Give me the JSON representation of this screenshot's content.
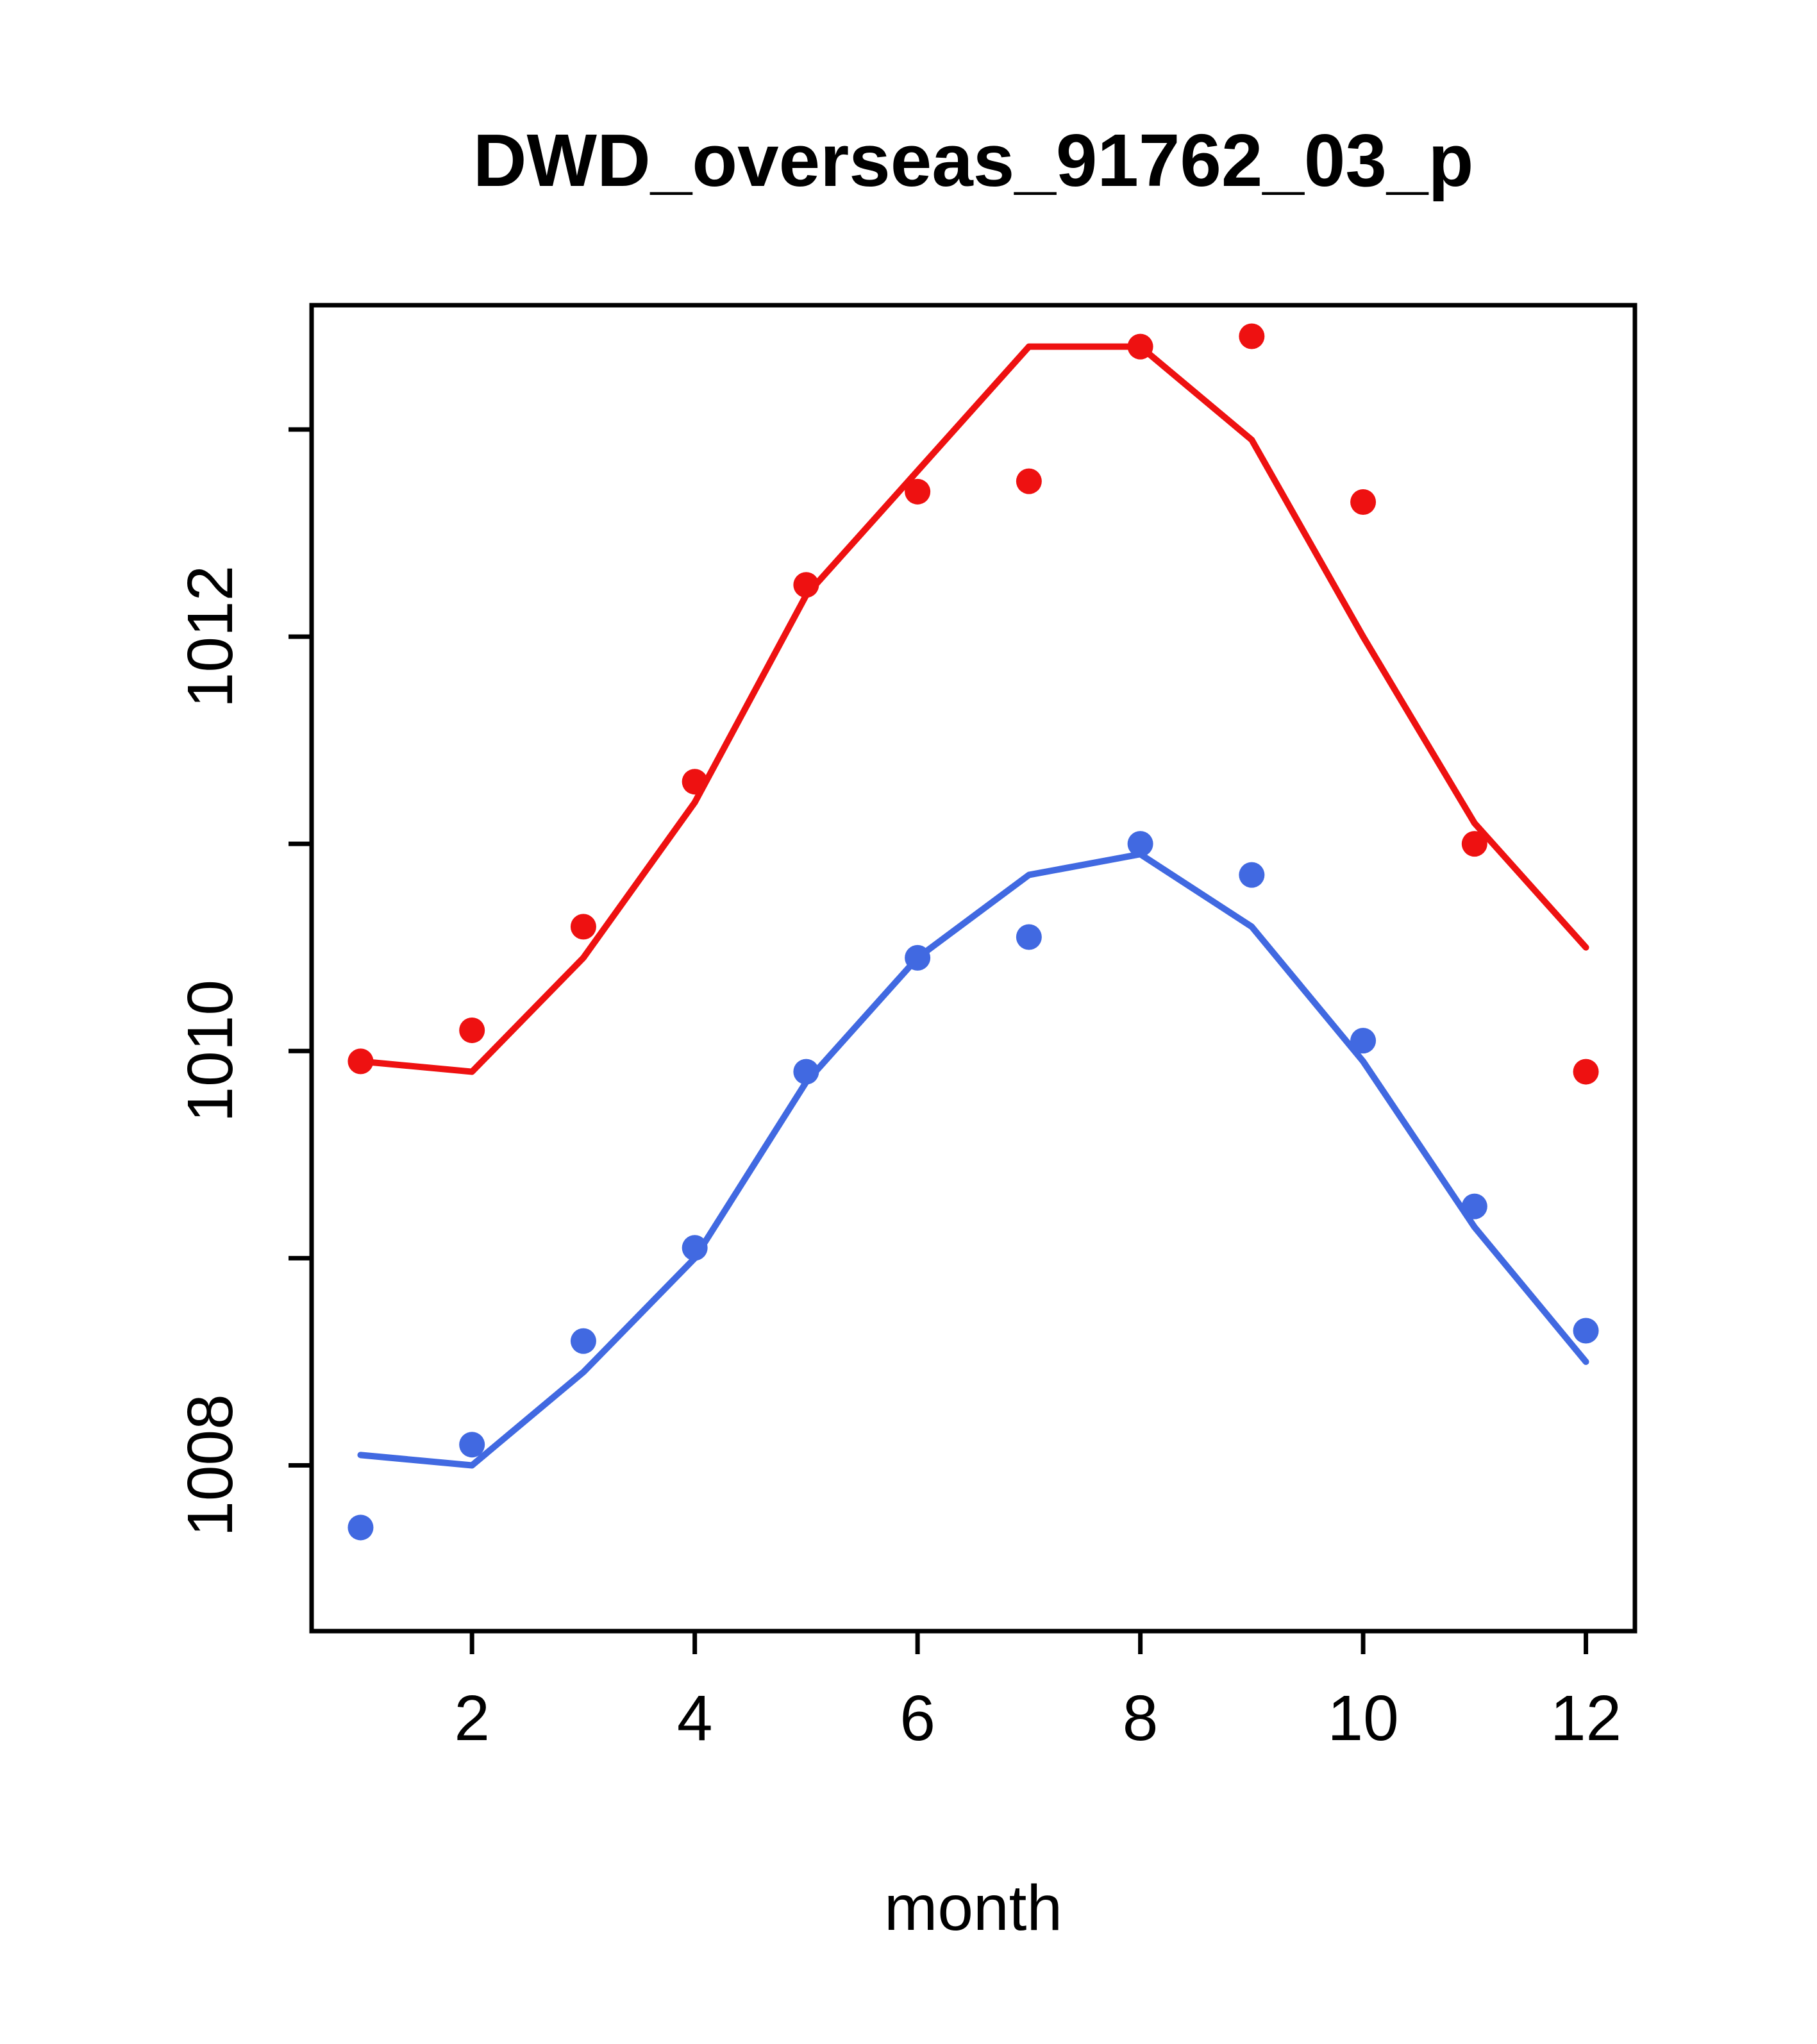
{
  "figure": {
    "background": "#ffffff"
  },
  "chart_data": {
    "type": "scatter",
    "title": "DWD_overseas_91762_03_p",
    "xlabel": "month",
    "ylabel": "",
    "x": [
      1,
      2,
      3,
      4,
      5,
      6,
      7,
      8,
      9,
      10,
      11,
      12
    ],
    "xlim": [
      0.56,
      12.44
    ],
    "ylim": [
      1007.2,
      1013.6
    ],
    "x_ticks": [
      2,
      4,
      6,
      8,
      10,
      12
    ],
    "y_ticks": [
      1008,
      1009,
      1010,
      1011,
      1012,
      1013
    ],
    "y_tick_labels": [
      1008,
      1010,
      1012
    ],
    "grid": false,
    "legend": "none",
    "colors": {
      "red": "#ee1111",
      "blue": "#4169e1",
      "axis": "#000000"
    },
    "series": [
      {
        "name": "red-line-fit",
        "type": "line",
        "color": "#ee1111",
        "values": [
          1009.95,
          1009.9,
          1010.45,
          1011.2,
          1012.2,
          1012.8,
          1013.4,
          1013.4,
          1012.95,
          1012.0,
          1011.1,
          1010.5
        ]
      },
      {
        "name": "red-points-observed",
        "type": "points",
        "color": "#ee1111",
        "values": [
          1009.95,
          1010.1,
          1010.6,
          1011.3,
          1012.25,
          1012.7,
          1012.75,
          1013.4,
          1013.45,
          1012.65,
          1011.0,
          1009.9
        ]
      },
      {
        "name": "blue-line-fit",
        "type": "line",
        "color": "#4169e1",
        "values": [
          1008.05,
          1008.0,
          1008.45,
          1009.0,
          1009.85,
          1010.45,
          1010.85,
          1010.95,
          1010.6,
          1009.95,
          1009.15,
          1008.5
        ]
      },
      {
        "name": "blue-points-observed",
        "type": "points",
        "color": "#4169e1",
        "values": [
          1007.7,
          1008.1,
          1008.6,
          1009.05,
          1009.9,
          1010.45,
          1010.55,
          1011.0,
          1010.85,
          1010.05,
          1009.25,
          1008.65
        ]
      }
    ]
  }
}
